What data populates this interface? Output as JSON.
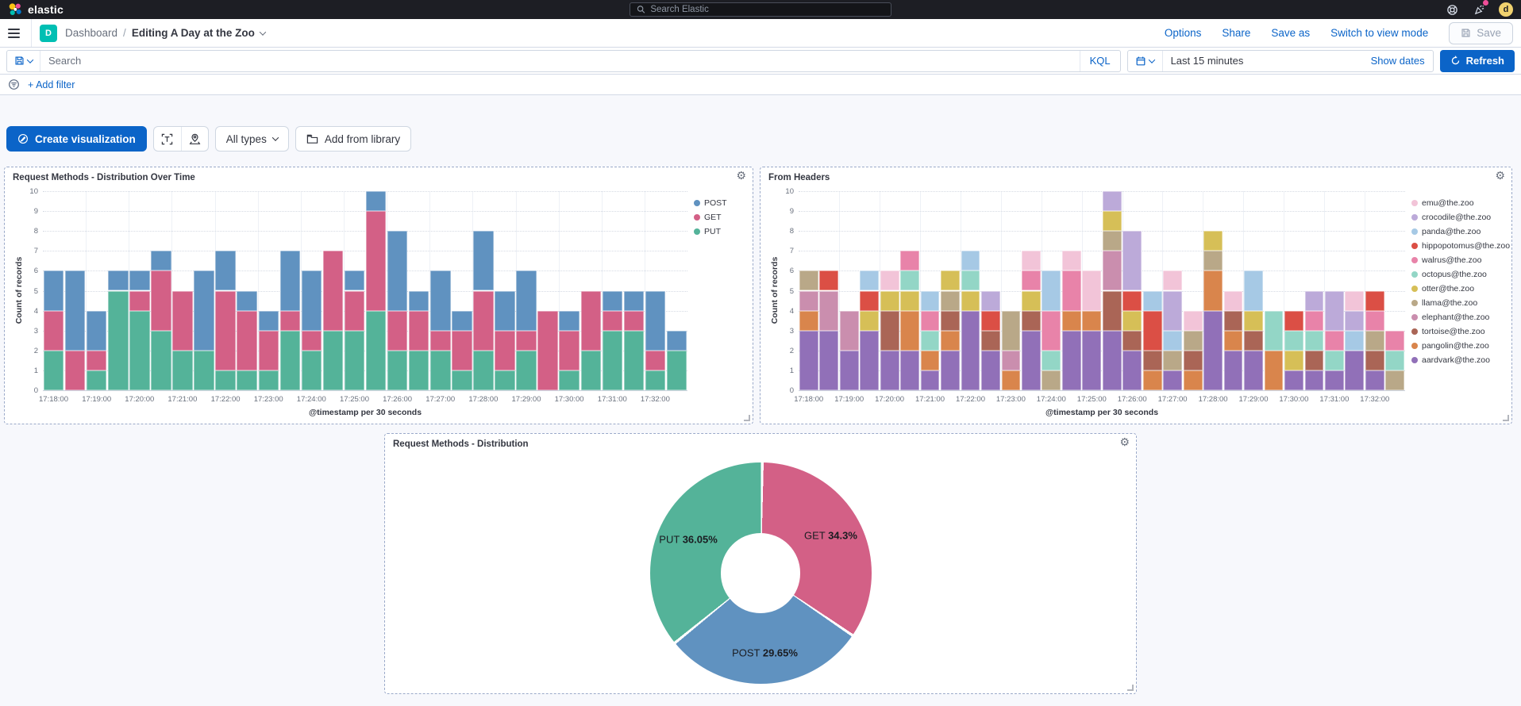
{
  "topbar": {
    "brand": "elastic",
    "search_placeholder": "Search Elastic",
    "avatar_initial": "d"
  },
  "navbar": {
    "breadcrumb_root": "Dashboard",
    "breadcrumb_sep": "/",
    "breadcrumb_current": "Editing A Day at the Zoo",
    "links": [
      "Options",
      "Share",
      "Save as",
      "Switch to view mode"
    ],
    "save_label": "Save"
  },
  "querybar": {
    "search_placeholder": "Search",
    "kql_label": "KQL",
    "time_range": "Last 15 minutes",
    "show_dates_label": "Show dates",
    "refresh_label": "Refresh"
  },
  "filterbar": {
    "add_filter_label": "+ Add filter"
  },
  "toolbar": {
    "create_label": "Create visualization",
    "all_types_label": "All types",
    "add_from_library_label": "Add from library"
  },
  "colors": {
    "accent_blue": "#0B64C8",
    "topbar_bg": "#1D1E24",
    "badge_teal": "#00BFB3",
    "avatar_yellow": "#F0D16E",
    "notification_pink": "#F04E98",
    "panel_border": "#9AA9C9"
  },
  "chart_data": [
    {
      "type": "bar",
      "stacked": true,
      "title": "Request Methods - Distribution Over Time",
      "xlabel": "@timestamp per 30 seconds",
      "ylabel": "Count of records",
      "ylim": [
        0,
        10
      ],
      "grid": true,
      "legend_position": "right",
      "tick_every": 2,
      "x": [
        "17:18:00",
        "17:18:30",
        "17:19:00",
        "17:19:30",
        "17:20:00",
        "17:20:30",
        "17:21:00",
        "17:21:30",
        "17:22:00",
        "17:22:30",
        "17:23:00",
        "17:23:30",
        "17:24:00",
        "17:24:30",
        "17:25:00",
        "17:25:30",
        "17:26:00",
        "17:26:30",
        "17:27:00",
        "17:27:30",
        "17:28:00",
        "17:28:30",
        "17:29:00",
        "17:29:30",
        "17:30:00",
        "17:30:30",
        "17:31:00",
        "17:31:30",
        "17:32:00",
        "17:32:30"
      ],
      "series": [
        {
          "name": "POST",
          "color": "#6092C0",
          "values": [
            2,
            4,
            2,
            1,
            1,
            1,
            0,
            4,
            2,
            1,
            1,
            3,
            3,
            0,
            1,
            1,
            4,
            1,
            3,
            1,
            3,
            2,
            3,
            0,
            1,
            0,
            1,
            1,
            3,
            1
          ]
        },
        {
          "name": "GET",
          "color": "#D36086",
          "values": [
            2,
            2,
            1,
            0,
            1,
            3,
            3,
            0,
            4,
            3,
            2,
            1,
            1,
            4,
            2,
            5,
            2,
            2,
            1,
            2,
            3,
            2,
            1,
            4,
            2,
            3,
            1,
            1,
            1,
            0
          ]
        },
        {
          "name": "PUT",
          "color": "#54B399",
          "values": [
            2,
            0,
            1,
            5,
            4,
            3,
            2,
            2,
            1,
            1,
            1,
            3,
            2,
            3,
            3,
            4,
            2,
            2,
            2,
            1,
            2,
            1,
            2,
            0,
            1,
            2,
            3,
            3,
            1,
            2
          ]
        }
      ]
    },
    {
      "type": "bar",
      "stacked": true,
      "title": "From Headers",
      "xlabel": "@timestamp per 30 seconds",
      "ylabel": "Count of records",
      "ylim": [
        0,
        10
      ],
      "grid": true,
      "legend_position": "right",
      "tick_every": 2,
      "x": [
        "17:18:00",
        "17:18:30",
        "17:19:00",
        "17:19:30",
        "17:20:00",
        "17:20:30",
        "17:21:00",
        "17:21:30",
        "17:22:00",
        "17:22:30",
        "17:23:00",
        "17:23:30",
        "17:24:00",
        "17:24:30",
        "17:25:00",
        "17:25:30",
        "17:26:00",
        "17:26:30",
        "17:27:00",
        "17:27:30",
        "17:28:00",
        "17:28:30",
        "17:29:00",
        "17:29:30",
        "17:30:00",
        "17:30:30",
        "17:31:00",
        "17:31:30",
        "17:32:00",
        "17:32:30"
      ],
      "series": [
        {
          "name": "emu@the.zoo",
          "color": "#F2C4D8",
          "values": [
            0,
            0,
            0,
            0,
            1,
            0,
            0,
            0,
            0,
            0,
            0,
            1,
            0,
            1,
            2,
            0,
            0,
            0,
            1,
            1,
            0,
            1,
            0,
            0,
            0,
            0,
            0,
            1,
            0,
            0
          ]
        },
        {
          "name": "crocodile@the.zoo",
          "color": "#BCAAD9",
          "values": [
            0,
            0,
            0,
            0,
            0,
            0,
            0,
            0,
            0,
            1,
            0,
            0,
            0,
            0,
            0,
            1,
            3,
            0,
            2,
            0,
            0,
            0,
            0,
            0,
            0,
            1,
            2,
            1,
            0,
            0
          ]
        },
        {
          "name": "panda@the.zoo",
          "color": "#A6C9E5",
          "values": [
            0,
            0,
            0,
            1,
            0,
            0,
            1,
            0,
            1,
            0,
            0,
            0,
            2,
            0,
            0,
            0,
            0,
            1,
            1,
            0,
            0,
            0,
            2,
            0,
            0,
            0,
            0,
            1,
            0,
            0
          ]
        },
        {
          "name": "hippopotomus@the.zoo",
          "color": "#DB4F45",
          "values": [
            0,
            1,
            0,
            1,
            0,
            0,
            0,
            0,
            0,
            1,
            0,
            0,
            0,
            0,
            0,
            0,
            1,
            2,
            0,
            0,
            0,
            0,
            0,
            0,
            1,
            0,
            0,
            0,
            1,
            0
          ]
        },
        {
          "name": "walrus@the.zoo",
          "color": "#E883A9",
          "values": [
            0,
            0,
            0,
            0,
            0,
            1,
            1,
            0,
            0,
            0,
            0,
            1,
            2,
            2,
            0,
            0,
            0,
            0,
            0,
            0,
            0,
            0,
            0,
            0,
            0,
            1,
            1,
            0,
            1,
            1
          ]
        },
        {
          "name": "octopus@the.zoo",
          "color": "#93D6C6",
          "values": [
            0,
            0,
            0,
            0,
            0,
            1,
            1,
            0,
            1,
            0,
            0,
            0,
            1,
            0,
            0,
            0,
            0,
            0,
            0,
            0,
            0,
            0,
            0,
            2,
            1,
            1,
            1,
            0,
            0,
            1
          ]
        },
        {
          "name": "otter@the.zoo",
          "color": "#D6BF57",
          "values": [
            0,
            0,
            0,
            1,
            1,
            1,
            0,
            1,
            1,
            0,
            0,
            1,
            0,
            0,
            0,
            1,
            1,
            0,
            0,
            0,
            1,
            0,
            1,
            0,
            1,
            0,
            0,
            0,
            0,
            0
          ]
        },
        {
          "name": "llama@the.zoo",
          "color": "#B9A888",
          "values": [
            1,
            0,
            0,
            0,
            0,
            0,
            0,
            1,
            0,
            0,
            2,
            0,
            1,
            0,
            0,
            1,
            0,
            0,
            1,
            1,
            1,
            0,
            0,
            0,
            0,
            0,
            0,
            0,
            1,
            1
          ]
        },
        {
          "name": "elephant@the.zoo",
          "color": "#CA8EAE",
          "values": [
            1,
            2,
            2,
            0,
            0,
            0,
            0,
            0,
            0,
            0,
            1,
            0,
            0,
            0,
            0,
            2,
            0,
            0,
            0,
            0,
            0,
            0,
            0,
            0,
            0,
            0,
            0,
            0,
            0,
            0
          ]
        },
        {
          "name": "tortoise@the.zoo",
          "color": "#AA6556",
          "values": [
            0,
            0,
            0,
            0,
            2,
            0,
            0,
            1,
            0,
            1,
            0,
            1,
            0,
            0,
            0,
            2,
            1,
            1,
            0,
            1,
            0,
            1,
            1,
            0,
            0,
            1,
            0,
            0,
            1,
            0
          ]
        },
        {
          "name": "pangolin@the.zoo",
          "color": "#D9854C",
          "values": [
            1,
            0,
            0,
            0,
            0,
            2,
            1,
            1,
            0,
            0,
            1,
            0,
            0,
            1,
            1,
            0,
            0,
            1,
            0,
            1,
            2,
            1,
            0,
            2,
            0,
            0,
            0,
            0,
            0,
            0
          ]
        },
        {
          "name": "aardvark@the.zoo",
          "color": "#9170B8",
          "values": [
            3,
            3,
            2,
            3,
            2,
            2,
            1,
            2,
            4,
            2,
            0,
            3,
            0,
            3,
            3,
            3,
            2,
            0,
            1,
            0,
            4,
            2,
            2,
            0,
            1,
            1,
            1,
            2,
            1,
            0
          ]
        }
      ]
    },
    {
      "type": "pie",
      "donut": true,
      "title": "Request Methods - Distribution",
      "slices": [
        {
          "name": "GET",
          "value": 34.3,
          "pct_label": "34.3%",
          "color": "#D36086"
        },
        {
          "name": "POST",
          "value": 29.65,
          "pct_label": "29.65%",
          "color": "#6092C0"
        },
        {
          "name": "PUT",
          "value": 36.05,
          "pct_label": "36.05%",
          "color": "#54B399"
        }
      ]
    }
  ]
}
